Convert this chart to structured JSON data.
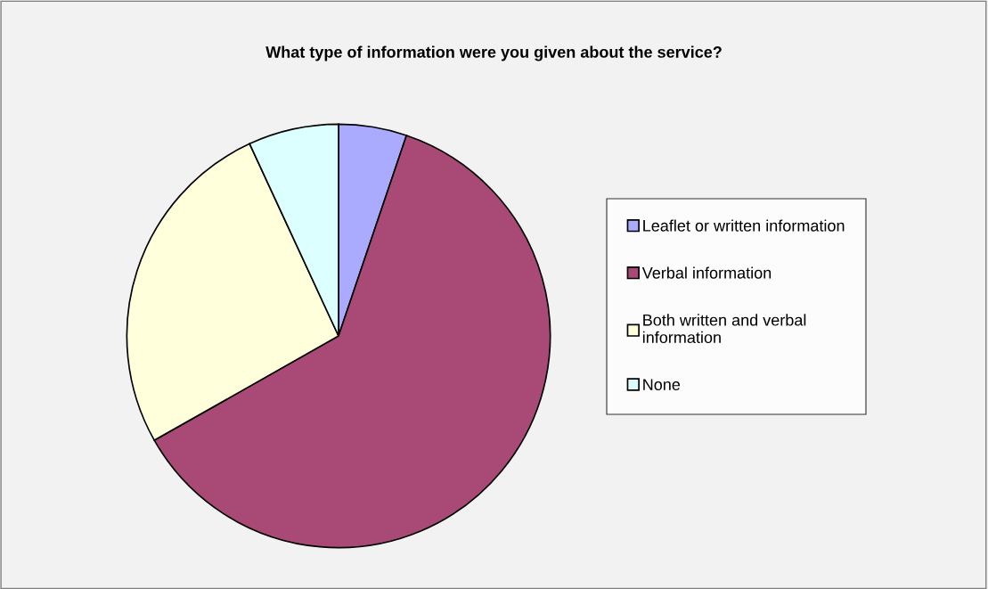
{
  "chart_data": {
    "type": "pie",
    "title": "What type of information were you given about the service?",
    "categories": [
      "Leaflet or written information",
      "Verbal information",
      "Both written and verbal\ninformation",
      "None"
    ],
    "values": [
      5.2,
      61.6,
      26.3,
      6.9
    ],
    "colors": [
      "#aaaaff",
      "#a94a76",
      "#ffffdc",
      "#dcffff"
    ],
    "legend": "right"
  }
}
